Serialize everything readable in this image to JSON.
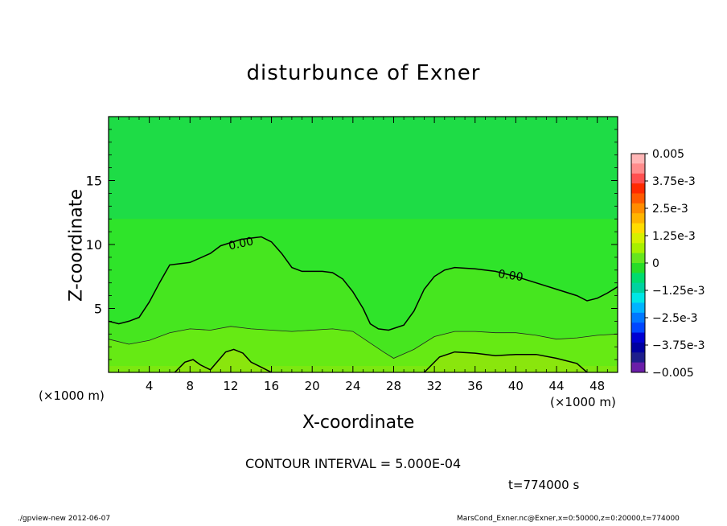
{
  "chart_data": {
    "type": "heatmap",
    "title": "disturbunce of Exner",
    "xlabel": "X-coordinate",
    "ylabel": "Z-coordinate",
    "x_unit_label": "(×1000 m)",
    "xlim": [
      0,
      50
    ],
    "ylim": [
      0,
      20
    ],
    "x_ticks": [
      4,
      8,
      12,
      16,
      20,
      24,
      28,
      32,
      36,
      40,
      44,
      48
    ],
    "y_ticks": [
      5,
      10,
      15
    ],
    "contour_interval_text": "CONTOUR INTERVAL = 5.000E-04",
    "time_text": "t=774000 s",
    "contour_labels": [
      {
        "text": "0.00",
        "x": 13.0,
        "z": 10.1
      },
      {
        "text": "0.00",
        "x": 39.5,
        "z": 7.6
      }
    ],
    "zero_contour": [
      [
        0,
        4.0
      ],
      [
        1,
        3.8
      ],
      [
        2,
        4.0
      ],
      [
        3,
        4.3
      ],
      [
        4,
        5.5
      ],
      [
        5,
        7.0
      ],
      [
        6,
        8.4
      ],
      [
        7,
        8.5
      ],
      [
        8,
        8.6
      ],
      [
        10,
        9.3
      ],
      [
        11,
        9.9
      ],
      [
        13,
        10.4
      ],
      [
        15,
        10.6
      ],
      [
        16,
        10.2
      ],
      [
        17,
        9.3
      ],
      [
        18,
        8.2
      ],
      [
        19,
        7.9
      ],
      [
        20,
        7.9
      ],
      [
        21,
        7.9
      ],
      [
        22,
        7.8
      ],
      [
        23,
        7.3
      ],
      [
        24,
        6.3
      ],
      [
        25,
        5.0
      ],
      [
        25.7,
        3.8
      ],
      [
        26.5,
        3.4
      ],
      [
        27.5,
        3.3
      ],
      [
        29,
        3.7
      ],
      [
        30,
        4.8
      ],
      [
        31,
        6.5
      ],
      [
        32,
        7.5
      ],
      [
        33,
        8.0
      ],
      [
        34,
        8.2
      ],
      [
        36,
        8.1
      ],
      [
        38,
        7.9
      ],
      [
        40,
        7.5
      ],
      [
        42,
        7.0
      ],
      [
        44,
        6.5
      ],
      [
        46,
        6.0
      ],
      [
        47,
        5.6
      ],
      [
        48,
        5.8
      ],
      [
        49,
        6.2
      ],
      [
        50,
        6.7
      ]
    ],
    "inner_contour": [
      [
        0,
        2.6
      ],
      [
        2,
        2.2
      ],
      [
        4,
        2.5
      ],
      [
        6,
        3.1
      ],
      [
        8,
        3.4
      ],
      [
        10,
        3.3
      ],
      [
        12,
        3.6
      ],
      [
        14,
        3.4
      ],
      [
        16,
        3.3
      ],
      [
        18,
        3.2
      ],
      [
        20,
        3.3
      ],
      [
        22,
        3.4
      ],
      [
        24,
        3.2
      ],
      [
        25.5,
        2.4
      ],
      [
        27,
        1.6
      ],
      [
        28,
        1.1
      ],
      [
        30,
        1.8
      ],
      [
        32,
        2.8
      ],
      [
        34,
        3.2
      ],
      [
        36,
        3.2
      ],
      [
        38,
        3.1
      ],
      [
        40,
        3.1
      ],
      [
        42,
        2.9
      ],
      [
        44,
        2.6
      ],
      [
        46,
        2.7
      ],
      [
        48,
        2.9
      ],
      [
        50,
        3.0
      ]
    ],
    "lower_contour": [
      [
        6.5,
        0
      ],
      [
        7.5,
        0.8
      ],
      [
        8.3,
        1.0
      ],
      [
        9,
        0.6
      ],
      [
        10,
        0.2
      ],
      [
        11.5,
        1.6
      ],
      [
        12.3,
        1.8
      ],
      [
        13.2,
        1.5
      ],
      [
        14,
        0.8
      ],
      [
        15,
        0.4
      ],
      [
        16,
        0
      ]
    ],
    "lower_contour_2": [
      [
        31,
        0
      ],
      [
        32.5,
        1.2
      ],
      [
        34,
        1.6
      ],
      [
        36,
        1.5
      ],
      [
        38,
        1.3
      ],
      [
        40,
        1.4
      ],
      [
        42,
        1.4
      ],
      [
        44,
        1.1
      ],
      [
        46,
        0.7
      ],
      [
        47,
        0
      ]
    ],
    "field_bands": [
      {
        "z": 20,
        "color": "#1edc46"
      },
      {
        "z": 12,
        "color": "#2fe42a"
      },
      {
        "z": 6,
        "color": "#46e61f"
      },
      {
        "z": 3,
        "color": "#66ea14"
      },
      {
        "z": 1.2,
        "color": "#8ae60d"
      }
    ],
    "colorbar": {
      "tick_labels": [
        "0.005",
        "3.75e-3",
        "2.5e-3",
        "1.25e-3",
        "0",
        "−1.25e-3",
        "−2.5e-3",
        "−3.75e-3",
        "−0.005"
      ],
      "colors": [
        "#ffb6b6",
        "#ff8c8c",
        "#ff5050",
        "#ff2a00",
        "#ff5a00",
        "#ff8c00",
        "#ffb400",
        "#ffdc00",
        "#d6f000",
        "#a8f000",
        "#66e61e",
        "#28dc28",
        "#00dc6e",
        "#00d2a0",
        "#00e6e6",
        "#00b4ff",
        "#0078ff",
        "#0046ff",
        "#0000d2",
        "#0000a0",
        "#1e1e8c",
        "#6a1ea8"
      ]
    }
  },
  "footer": {
    "left": "./gpview-new  2012-06-07",
    "right": "MarsCond_Exner.nc@Exner,x=0:50000,z=0:20000,t=774000"
  }
}
